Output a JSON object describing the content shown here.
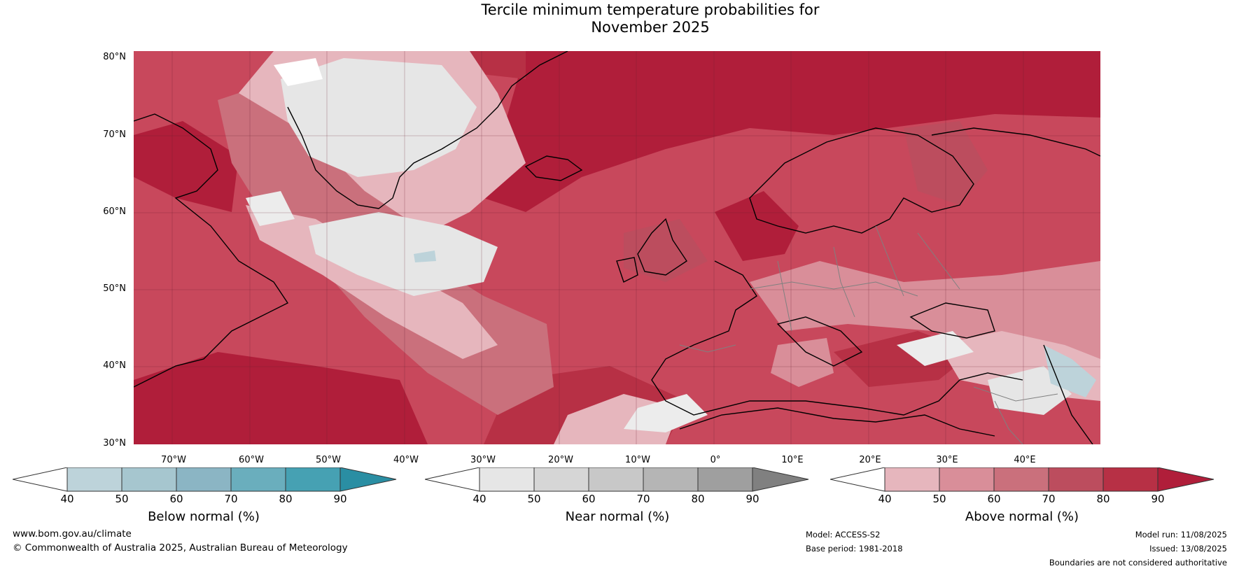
{
  "title": {
    "line1": "Tercile minimum temperature probabilities for",
    "line2": "November 2025"
  },
  "map": {
    "region": "North Atlantic and Europe",
    "lat_labels": [
      "80°N",
      "70°N",
      "60°N",
      "50°N",
      "40°N",
      "30°N"
    ],
    "lon_labels": [
      "70°W",
      "60°W",
      "50°W",
      "40°W",
      "30°W",
      "20°W",
      "10°W",
      "0°",
      "10°E",
      "20°E",
      "30°E",
      "40°E"
    ],
    "background_color": "#cd5a6c"
  },
  "legends": [
    {
      "id": "below",
      "title": "Below normal (%)",
      "ticks": [
        "40",
        "50",
        "60",
        "70",
        "80",
        "90"
      ],
      "low_color": "#ffffff",
      "colors": [
        "#bdd3da",
        "#a6c6cf",
        "#8bb5c4",
        "#6aaebd",
        "#46a1b3"
      ],
      "high_color": "#2a8ea3"
    },
    {
      "id": "near",
      "title": "Near normal (%)",
      "ticks": [
        "40",
        "50",
        "60",
        "70",
        "80",
        "90"
      ],
      "low_color": "#ffffff",
      "colors": [
        "#e6e6e6",
        "#d6d6d6",
        "#c8c8c8",
        "#b5b5b5",
        "#9f9f9f"
      ],
      "high_color": "#808080"
    },
    {
      "id": "above",
      "title": "Above normal (%)",
      "ticks": [
        "40",
        "50",
        "60",
        "70",
        "80",
        "90"
      ],
      "low_color": "#ffffff",
      "colors": [
        "#e6b6bd",
        "#d98e99",
        "#ca707c",
        "#bc4d5e",
        "#b73045"
      ],
      "high_color": "#b01e3a"
    }
  ],
  "footer": {
    "website": "www.bom.gov.au/climate",
    "copyright": "© Commonwealth of Australia 2025, Australian Bureau of Meteorology",
    "model": "Model: ACCESS-S2",
    "base_period": "Base period: 1981-2018",
    "model_run": "Model run: 11/08/2025",
    "issued": "Issued: 13/08/2025",
    "disclaimer": "Boundaries are not considered authoritative"
  }
}
